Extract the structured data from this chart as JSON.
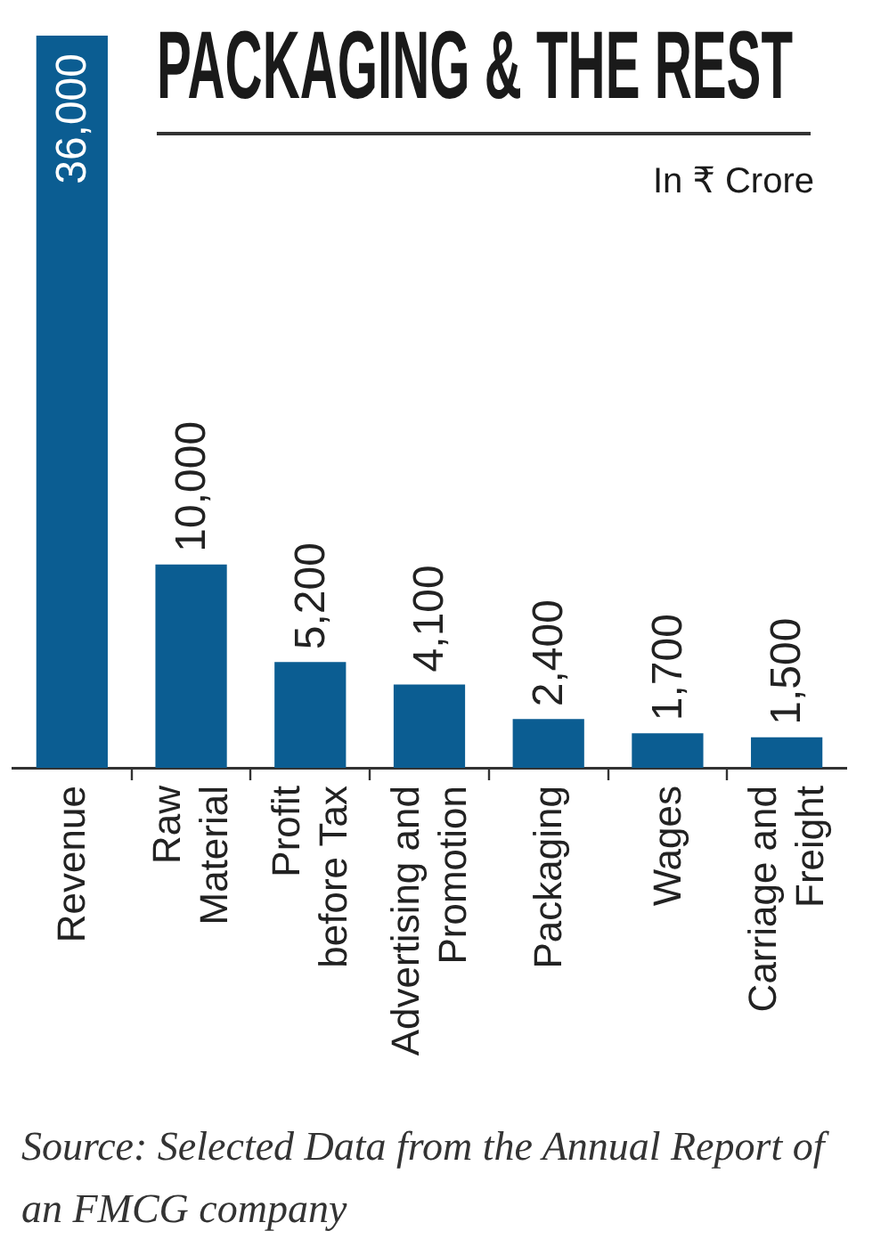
{
  "chart_data": {
    "type": "bar",
    "title": "PACKAGING & THE REST",
    "subtitle": "In ₹ Crore",
    "categories": [
      "Revenue",
      "Raw\nMaterial",
      "Profit\nbefore Tax",
      "Advertising and\nPromotion",
      "Packaging",
      "Wages",
      "Carriage and\nFreight"
    ],
    "values": [
      36000,
      10000,
      5200,
      4100,
      2400,
      1700,
      1500
    ],
    "value_labels": [
      "36,000",
      "10,000",
      "5,200",
      "4,100",
      "2,400",
      "1,700",
      "1,500"
    ],
    "color": "#0b5d92",
    "tick_labels": "x",
    "annotations": [
      "Source: Selected Data from the Annual Report of an FMCG company"
    ]
  }
}
